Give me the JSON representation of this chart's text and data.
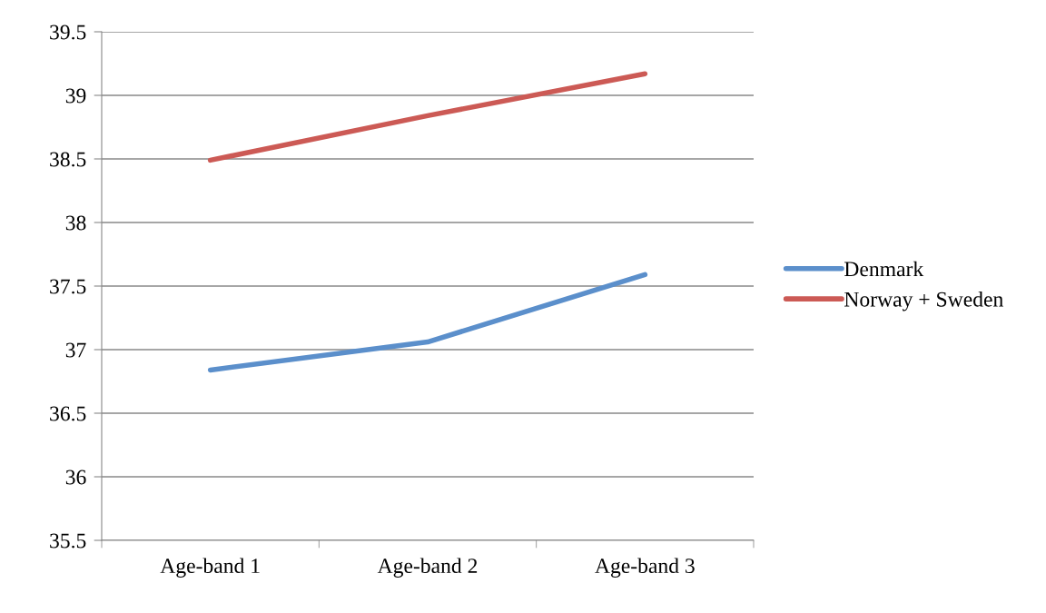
{
  "chart_data": {
    "type": "line",
    "categories": [
      "Age-band 1",
      "Age-band 2",
      "Age-band 3"
    ],
    "series": [
      {
        "name": "Denmark",
        "color": "#5b8fcb",
        "values": [
          36.84,
          37.06,
          37.59
        ]
      },
      {
        "name": "Norway + Sweden",
        "color": "#cc5a55",
        "values": [
          38.49,
          38.84,
          39.17
        ]
      }
    ],
    "ylim": [
      35.5,
      39.5
    ],
    "yticks": [
      35.5,
      36,
      36.5,
      37,
      37.5,
      38,
      38.5,
      39,
      39.5
    ],
    "grid": "y",
    "legend": "right",
    "marker": "none",
    "line_style": "solid"
  }
}
